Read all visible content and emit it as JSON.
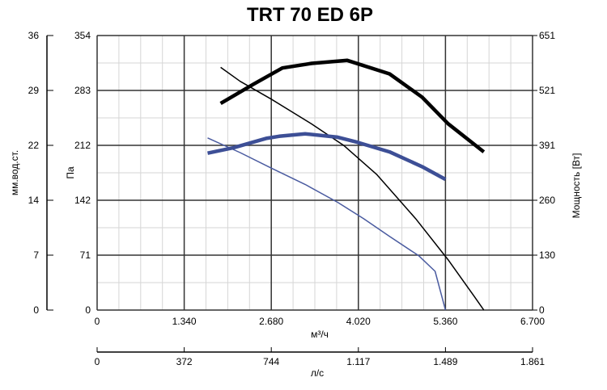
{
  "chart_data": {
    "type": "line",
    "title": "TRT 70 ED 6P",
    "x_axis": {
      "label": "м³/ч",
      "range": [
        0,
        6700
      ],
      "ticks": [
        "0",
        "1.340",
        "2.680",
        "4.020",
        "5.360",
        "6.700"
      ]
    },
    "x2_axis": {
      "label": "л/с",
      "range": [
        0,
        1861
      ],
      "ticks": [
        "0",
        "372",
        "744",
        "1.117",
        "1.489",
        "1.861"
      ]
    },
    "y_axis_pa": {
      "label": "Па",
      "range": [
        0,
        354
      ],
      "ticks": [
        "0",
        "71",
        "142",
        "212",
        "283",
        "354"
      ]
    },
    "y_axis_mm": {
      "label": "мм.вод.ст.",
      "range": [
        0,
        36
      ],
      "ticks": [
        "0",
        "7",
        "14",
        "22",
        "29",
        "36"
      ]
    },
    "y_axis_power": {
      "label": "Мощность [Вт]",
      "range": [
        0,
        651
      ],
      "ticks": [
        "0",
        "130",
        "260",
        "391",
        "521",
        "651"
      ]
    },
    "grid": true,
    "series": [
      {
        "color": "#000000",
        "width": 1.5,
        "axis": "pressure",
        "x": [
          1900,
          2200,
          2680,
          3300,
          3800,
          4300,
          4900,
          5400,
          5800,
          5950
        ],
        "y": [
          313,
          295,
          272,
          240,
          212,
          175,
          118,
          65,
          18,
          0
        ]
      },
      {
        "color": "#000000",
        "width": 4.5,
        "axis": "power",
        "x": [
          1900,
          2400,
          2850,
          3300,
          3850,
          4500,
          5000,
          5400,
          5950
        ],
        "y": [
          490,
          535,
          574,
          585,
          592,
          560,
          505,
          442,
          375
        ]
      },
      {
        "color": "#4a5ba0",
        "width": 1.5,
        "axis": "pressure",
        "x": [
          1700,
          2200,
          2680,
          3200,
          3700,
          4100,
          4500,
          4950,
          5200,
          5360
        ],
        "y": [
          222,
          203,
          183,
          162,
          139,
          118,
          95,
          70,
          50,
          0
        ]
      },
      {
        "color": "#3d4f96",
        "width": 4.5,
        "axis": "power",
        "x": [
          1700,
          2100,
          2600,
          2800,
          3200,
          3700,
          4000,
          4500,
          5000,
          5360
        ],
        "y": [
          372,
          385,
          407,
          412,
          418,
          410,
          398,
          375,
          340,
          310
        ]
      }
    ]
  }
}
